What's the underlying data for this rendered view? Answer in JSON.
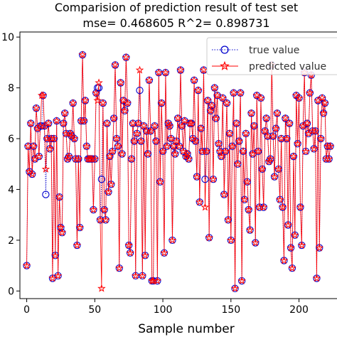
{
  "chart_data": {
    "type": "line",
    "title": "Comparision of prediction result of test set",
    "subtitle": "mse= 0.468605 R^2= 0.898731",
    "xlabel": "Sample number",
    "ylabel": "",
    "xlim": [
      -5,
      230
    ],
    "ylim": [
      -0.3,
      10.2
    ],
    "xticks": [
      0,
      50,
      100,
      150,
      200
    ],
    "yticks": [
      0,
      2,
      4,
      6,
      8,
      10
    ],
    "grid": false,
    "legend_position": "top-right",
    "series": [
      {
        "name": "true value",
        "color": "#0000cc",
        "line_style": "dotted",
        "marker": "circle",
        "values": [
          1.0,
          5.7,
          4.7,
          6.6,
          4.6,
          5.7,
          5.2,
          7.2,
          6.4,
          5.3,
          6.5,
          6.5,
          7.7,
          6.5,
          3.8,
          6.0,
          6.6,
          5.6,
          6.0,
          0.5,
          6.0,
          1.4,
          6.7,
          0.6,
          3.7,
          2.5,
          2.3,
          6.6,
          7.0,
          6.2,
          5.2,
          5.3,
          6.2,
          6.1,
          7.4,
          6.0,
          5.2,
          1.8,
          5.2,
          2.5,
          6.7,
          9.3,
          6.7,
          7.5,
          5.7,
          5.2,
          5.2,
          5.2,
          5.2,
          3.2,
          5.2,
          7.8,
          8.0,
          8.0,
          2.8,
          4.4,
          7.4,
          3.2,
          2.8,
          6.6,
          3.9,
          5.3,
          4.2,
          5.5,
          6.8,
          8.9,
          6.0,
          5.7,
          0.9,
          8.2,
          5.4,
          7.5,
          7.1,
          9.2,
          7.4,
          1.8,
          1.5,
          5.2,
          6.6,
          5.9,
          0.6,
          6.2,
          6.6,
          7.9,
          5.9,
          0.6,
          6.5,
          1.4,
          6.3,
          5.4,
          8.3,
          6.3,
          0.4,
          0.4,
          6.5,
          5.9,
          0.4,
          8.6,
          4.3,
          7.4,
          5.5,
          1.5,
          8.6,
          5.7,
          6.6,
          6.5,
          6.0,
          2.0,
          5.7,
          5.4,
          5.9,
          6.8,
          5.7,
          8.7,
          6.5,
          5.5,
          6.7,
          5.3,
          5.4,
          5.2,
          6.6,
          6.6,
          6.0,
          8.3,
          5.9,
          4.5,
          7.9,
          3.5,
          6.4,
          5.5,
          8.7,
          4.4,
          5.5,
          7.5,
          2.1,
          7.1,
          7.3,
          4.4,
          8.0,
          6.8,
          7.7,
          5.8,
          5.5,
          5.3,
          7.6,
          3.8,
          5.5,
          7.4,
          2.8,
          6.2,
          2.0,
          5.7,
          7.8,
          0.1,
          6.6,
          5.0,
          5.9,
          7.8,
          0.4,
          5.5,
          3.6,
          6.2,
          4.3,
          3.2,
          2.4,
          7.0,
          5.4,
          6.5,
          1.9,
          7.7,
          5.5,
          3.3,
          7.6,
          4.8,
          3.3,
          6.3,
          6.8,
          6.1,
          5.1,
          5.2,
          8.9,
          6.1,
          4.5,
          6.4,
          7.0,
          4.8,
          3.6,
          6.0,
          3.3,
          1.2,
          6.8,
          6.0,
          2.6,
          6.6,
          1.7,
          0.9,
          5.3,
          2.2,
          7.7,
          5.8,
          7.6,
          3.3,
          1.8,
          6.5,
          8.6,
          5.5,
          6.6,
          6.2,
          7.8,
          8.5,
          6.3,
          5.6,
          6.3,
          0.5,
          7.5,
          1.7,
          6.0,
          7.6,
          7.0,
          7.4,
          5.2,
          5.7,
          5.2,
          5.7
        ]
      },
      {
        "name": "predicted value",
        "color": "#ff0000",
        "line_style": "solid",
        "marker": "star",
        "values": [
          1.0,
          5.7,
          4.7,
          6.6,
          4.6,
          5.7,
          5.2,
          7.2,
          6.4,
          5.3,
          6.5,
          7.7,
          7.7,
          6.5,
          4.8,
          6.0,
          6.6,
          5.6,
          6.0,
          0.5,
          6.0,
          1.4,
          6.7,
          0.6,
          3.7,
          2.5,
          2.3,
          6.6,
          7.0,
          6.2,
          5.2,
          5.3,
          6.2,
          6.1,
          7.4,
          6.0,
          5.2,
          1.8,
          5.2,
          2.5,
          6.7,
          9.3,
          6.7,
          7.5,
          5.7,
          5.2,
          5.2,
          5.2,
          5.2,
          3.2,
          5.2,
          7.8,
          7.5,
          8.2,
          2.8,
          0.1,
          7.4,
          3.2,
          2.8,
          6.6,
          3.9,
          5.3,
          4.2,
          5.5,
          6.8,
          8.9,
          6.0,
          5.7,
          0.9,
          8.2,
          5.4,
          7.5,
          7.1,
          9.2,
          7.4,
          1.8,
          1.5,
          5.2,
          6.6,
          5.9,
          0.6,
          6.2,
          6.6,
          8.7,
          5.9,
          0.6,
          6.5,
          1.4,
          6.3,
          5.4,
          8.3,
          6.3,
          0.4,
          0.4,
          6.5,
          5.9,
          0.4,
          8.6,
          4.3,
          7.4,
          5.5,
          1.5,
          8.6,
          5.7,
          6.6,
          6.5,
          6.0,
          2.0,
          5.7,
          5.4,
          5.9,
          6.8,
          5.7,
          8.7,
          6.5,
          5.5,
          6.7,
          5.3,
          5.4,
          5.2,
          6.6,
          6.6,
          6.0,
          8.3,
          5.9,
          4.5,
          7.9,
          3.5,
          6.4,
          5.5,
          8.7,
          3.3,
          5.5,
          7.5,
          2.1,
          7.1,
          7.3,
          4.4,
          8.0,
          6.8,
          7.7,
          5.8,
          5.5,
          5.3,
          7.6,
          3.8,
          5.5,
          7.4,
          2.8,
          6.2,
          2.0,
          5.7,
          7.8,
          0.1,
          6.6,
          5.0,
          5.9,
          7.8,
          0.4,
          5.5,
          3.6,
          6.2,
          4.3,
          3.2,
          2.4,
          7.0,
          5.4,
          6.5,
          1.9,
          7.7,
          5.5,
          3.3,
          7.6,
          4.8,
          3.3,
          6.3,
          6.8,
          6.1,
          5.1,
          5.2,
          8.9,
          6.1,
          4.5,
          6.4,
          7.0,
          4.8,
          3.6,
          6.0,
          3.3,
          1.2,
          6.8,
          6.0,
          2.6,
          6.6,
          1.7,
          0.9,
          5.3,
          2.2,
          7.7,
          5.8,
          7.6,
          3.3,
          1.8,
          6.5,
          8.6,
          5.5,
          6.6,
          6.2,
          7.8,
          8.5,
          6.3,
          5.6,
          6.3,
          0.5,
          7.5,
          1.7,
          6.0,
          7.6,
          7.0,
          7.4,
          5.2,
          5.7,
          5.2,
          5.7
        ]
      }
    ]
  }
}
